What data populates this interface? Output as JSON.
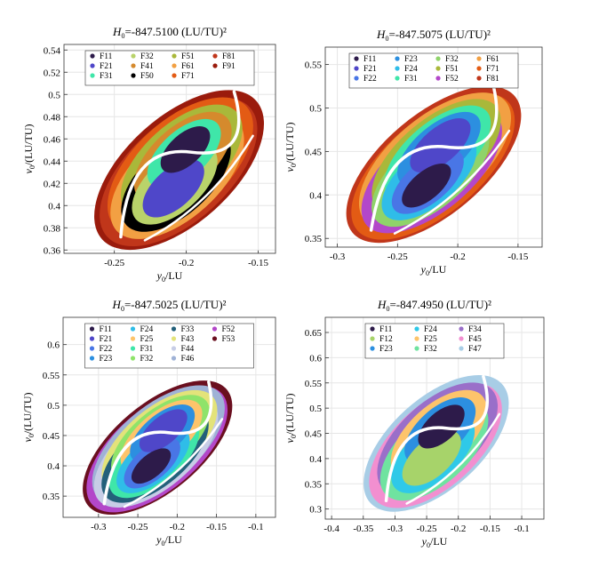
{
  "chart_data": [
    {
      "type": "scatter",
      "title": "H0=-847.5100 (LU/TU)²",
      "xlabel": "y0/LU",
      "ylabel": "v0/(LU/TU)",
      "xlim": [
        -0.285,
        -0.138
      ],
      "ylim": [
        0.357,
        0.545
      ],
      "xticks": [
        "-0.25",
        "-0.2",
        "-0.15"
      ],
      "xtick_values": [
        -0.25,
        -0.2,
        -0.15
      ],
      "yticks": [
        "0.36",
        "0.38",
        "0.4",
        "0.42",
        "0.44",
        "0.46",
        "0.48",
        "0.5",
        "0.52",
        "0.54"
      ],
      "ytick_values": [
        0.36,
        0.38,
        0.4,
        0.42,
        0.44,
        0.46,
        0.48,
        0.5,
        0.52,
        0.54
      ],
      "grid": true,
      "legend_position": "top-center",
      "legend": [
        {
          "name": "F11",
          "color": "#2d1b4a"
        },
        {
          "name": "F21",
          "color": "#4f47c9"
        },
        {
          "name": "F31",
          "color": "#3fe6a9"
        },
        {
          "name": "F32",
          "color": "#b9d36a"
        },
        {
          "name": "F41",
          "color": "#d58a2d"
        },
        {
          "name": "F50",
          "color": "#000000"
        },
        {
          "name": "F51",
          "color": "#a9b83a"
        },
        {
          "name": "F61",
          "color": "#f2a043"
        },
        {
          "name": "F71",
          "color": "#e35b14"
        },
        {
          "name": "F81",
          "color": "#c0361a"
        },
        {
          "name": "F91",
          "color": "#9a1b0c"
        }
      ],
      "center": [
        -0.205,
        0.432
      ],
      "semi_axes": [
        0.072,
        0.048
      ],
      "angle_deg": 42
    },
    {
      "type": "scatter",
      "title": "H0=-847.5075 (LU/TU)²",
      "xlabel": "y0/LU",
      "ylabel": "v0/(LU/TU)",
      "xlim": [
        -0.31,
        -0.13
      ],
      "ylim": [
        0.34,
        0.57
      ],
      "xticks": [
        "-0.3",
        "-0.25",
        "-0.2",
        "-0.15"
      ],
      "xtick_values": [
        -0.3,
        -0.25,
        -0.2,
        -0.15
      ],
      "yticks": [
        "0.35",
        "0.4",
        "0.45",
        "0.5",
        "0.55"
      ],
      "ytick_values": [
        0.35,
        0.4,
        0.45,
        0.5,
        0.55
      ],
      "grid": true,
      "legend_position": "top-center",
      "legend": [
        {
          "name": "F11",
          "color": "#2d1b4a"
        },
        {
          "name": "F21",
          "color": "#4f47c9"
        },
        {
          "name": "F22",
          "color": "#4976e6"
        },
        {
          "name": "F23",
          "color": "#2c8fe0"
        },
        {
          "name": "F24",
          "color": "#2fbde8"
        },
        {
          "name": "F31",
          "color": "#3fe6a9"
        },
        {
          "name": "F32",
          "color": "#8fd36a"
        },
        {
          "name": "F51",
          "color": "#a9b83a"
        },
        {
          "name": "F52",
          "color": "#b347c9"
        },
        {
          "name": "F61",
          "color": "#f2a043"
        },
        {
          "name": "F71",
          "color": "#e35b14"
        },
        {
          "name": "F81",
          "color": "#c0361a"
        }
      ],
      "center": [
        -0.22,
        0.435
      ],
      "semi_axes": [
        0.088,
        0.058
      ],
      "angle_deg": 40
    },
    {
      "type": "scatter",
      "title": "H0=-847.5025 (LU/TU)²",
      "xlabel": "y0/LU",
      "ylabel": "v0/(LU/TU)",
      "xlim": [
        -0.345,
        -0.075
      ],
      "ylim": [
        0.315,
        0.645
      ],
      "xticks": [
        "-0.3",
        "-0.25",
        "-0.2",
        "-0.15",
        "-0.1"
      ],
      "xtick_values": [
        -0.3,
        -0.25,
        -0.2,
        -0.15,
        -0.1
      ],
      "yticks": [
        "0.35",
        "0.4",
        "0.45",
        "0.5",
        "0.55",
        "0.6"
      ],
      "ytick_values": [
        0.35,
        0.4,
        0.45,
        0.5,
        0.55,
        0.6
      ],
      "grid": true,
      "legend_position": "top-center",
      "legend": [
        {
          "name": "F11",
          "color": "#2d1b4a"
        },
        {
          "name": "F21",
          "color": "#4f47c9"
        },
        {
          "name": "F22",
          "color": "#4976e6"
        },
        {
          "name": "F23",
          "color": "#2c8fe0"
        },
        {
          "name": "F24",
          "color": "#2fbde8"
        },
        {
          "name": "F25",
          "color": "#fdc46b"
        },
        {
          "name": "F31",
          "color": "#3fe6a9"
        },
        {
          "name": "F32",
          "color": "#8fe36a"
        },
        {
          "name": "F33",
          "color": "#23607a"
        },
        {
          "name": "F43",
          "color": "#e3e37a"
        },
        {
          "name": "F44",
          "color": "#c7cde6"
        },
        {
          "name": "F46",
          "color": "#9fb2d6"
        },
        {
          "name": "F52",
          "color": "#b347c9"
        },
        {
          "name": "F53",
          "color": "#6a0f1f"
        }
      ],
      "center": [
        -0.225,
        0.43
      ],
      "semi_axes": [
        0.115,
        0.072
      ],
      "angle_deg": 40
    },
    {
      "type": "scatter",
      "title": "H0=-847.4950 (LU/TU)²",
      "xlabel": "y0/LU",
      "ylabel": "v0/(LU/TU)",
      "xlim": [
        -0.41,
        -0.065
      ],
      "ylim": [
        0.28,
        0.68
      ],
      "xticks": [
        "-0.4",
        "-0.35",
        "-0.3",
        "-0.25",
        "-0.2",
        "-0.15",
        "-0.1"
      ],
      "xtick_values": [
        -0.4,
        -0.35,
        -0.3,
        -0.25,
        -0.2,
        -0.15,
        -0.1
      ],
      "yticks": [
        "0.3",
        "0.35",
        "0.4",
        "0.45",
        "0.5",
        "0.55",
        "0.6",
        "0.65"
      ],
      "ytick_values": [
        0.3,
        0.35,
        0.4,
        0.45,
        0.5,
        0.55,
        0.6,
        0.65
      ],
      "grid": true,
      "legend_position": "top-center",
      "legend": [
        {
          "name": "F11",
          "color": "#2d1b4a"
        },
        {
          "name": "F12",
          "color": "#a7d36a"
        },
        {
          "name": "F23",
          "color": "#2c8fe0"
        },
        {
          "name": "F24",
          "color": "#2fc9e8"
        },
        {
          "name": "F25",
          "color": "#fdc46b"
        },
        {
          "name": "F32",
          "color": "#6fe3a0"
        },
        {
          "name": "F34",
          "color": "#9a6fc9"
        },
        {
          "name": "F45",
          "color": "#f28fd0"
        },
        {
          "name": "F47",
          "color": "#a8cde6"
        }
      ],
      "center": [
        -0.235,
        0.43
      ],
      "semi_axes": [
        0.14,
        0.09
      ],
      "angle_deg": 42
    }
  ]
}
